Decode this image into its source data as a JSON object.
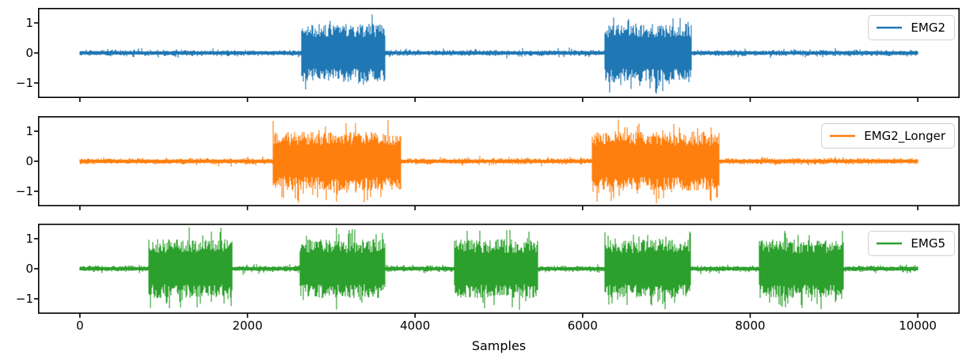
{
  "chart_data": {
    "type": "line",
    "title": "",
    "xlabel": "Samples",
    "ylabel": "",
    "xlim": [
      -500,
      10500
    ],
    "ylim": [
      -1.5,
      1.5
    ],
    "xticks": [
      0,
      2000,
      4000,
      6000,
      8000,
      10000
    ],
    "xtick_labels": [
      "0",
      "2000",
      "4000",
      "6000",
      "8000",
      "10000"
    ],
    "yticks": [
      1,
      0,
      -1
    ],
    "ytick_labels": [
      "1",
      "0",
      "−1"
    ],
    "grid": false,
    "legend_position": "upper right",
    "sample_range": [
      0,
      10000
    ],
    "series": [
      {
        "name": "EMG2",
        "color": "#1f77b4",
        "baseline_amplitude": 0.1,
        "burst_amplitude_typical": 0.9,
        "burst_peak_max": 1.4,
        "bursts": [
          [
            2640,
            3640
          ],
          [
            6260,
            7300
          ]
        ]
      },
      {
        "name": "EMG2_Longer",
        "color": "#ff7f0e",
        "baseline_amplitude": 0.1,
        "burst_amplitude_typical": 0.9,
        "burst_peak_max": 1.4,
        "bursts": [
          [
            2300,
            3830
          ],
          [
            6110,
            7630
          ]
        ]
      },
      {
        "name": "EMG5",
        "color": "#2ca02c",
        "baseline_amplitude": 0.1,
        "burst_amplitude_typical": 0.9,
        "burst_peak_max": 1.4,
        "bursts": [
          [
            820,
            1820
          ],
          [
            2620,
            3640
          ],
          [
            4470,
            5470
          ],
          [
            6260,
            7290
          ],
          [
            8100,
            9120
          ]
        ]
      }
    ]
  }
}
